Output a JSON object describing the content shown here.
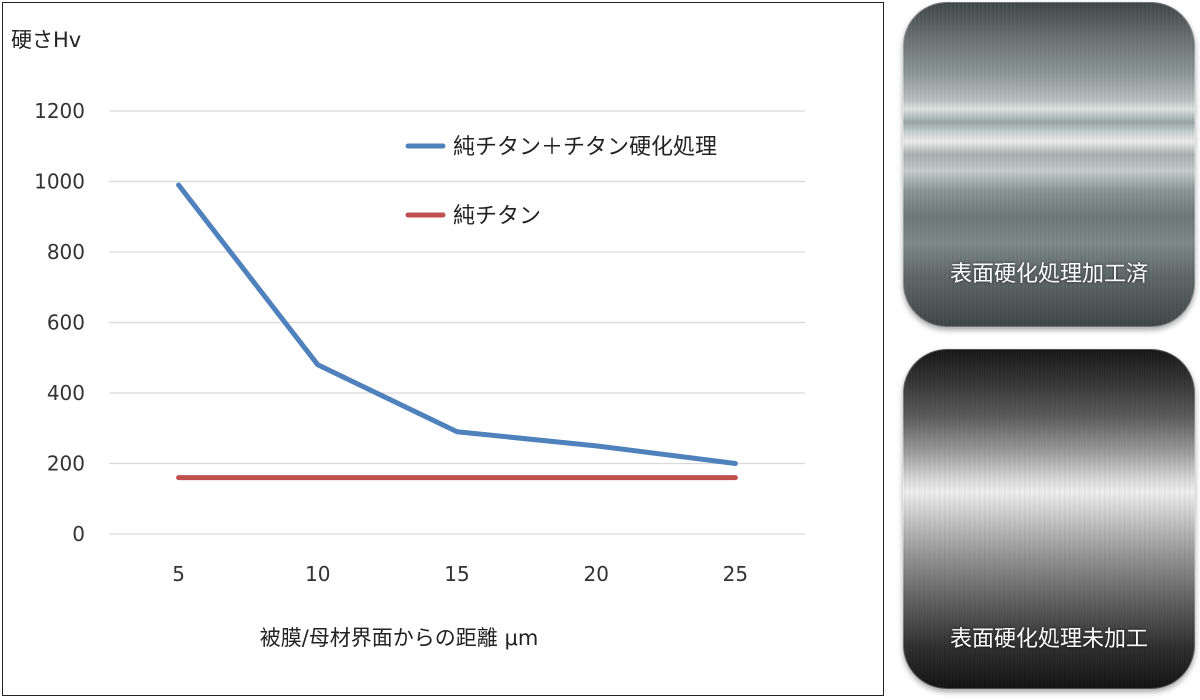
{
  "chart_data": {
    "type": "line",
    "ylabel": "硬さHv",
    "xlabel": "被膜/母材界面からの距離 μm",
    "categories": [
      "5",
      "10",
      "15",
      "20",
      "25"
    ],
    "yticks": [
      "0",
      "200",
      "400",
      "600",
      "800",
      "1000",
      "1200"
    ],
    "ylim": [
      0,
      1200
    ],
    "grid": "horizontal",
    "legend_position": "inside-top-right",
    "series": [
      {
        "name": "純チタン＋チタン硬化処理",
        "color": "#4f81bd",
        "values": [
          990,
          480,
          290,
          250,
          200
        ]
      },
      {
        "name": "純チタン",
        "color": "#c0504d",
        "values": [
          160,
          160,
          160,
          160,
          160
        ]
      }
    ]
  },
  "samples": {
    "treated_label": "表面硬化処理加工済",
    "untreated_label": "表面硬化処理未加工"
  }
}
